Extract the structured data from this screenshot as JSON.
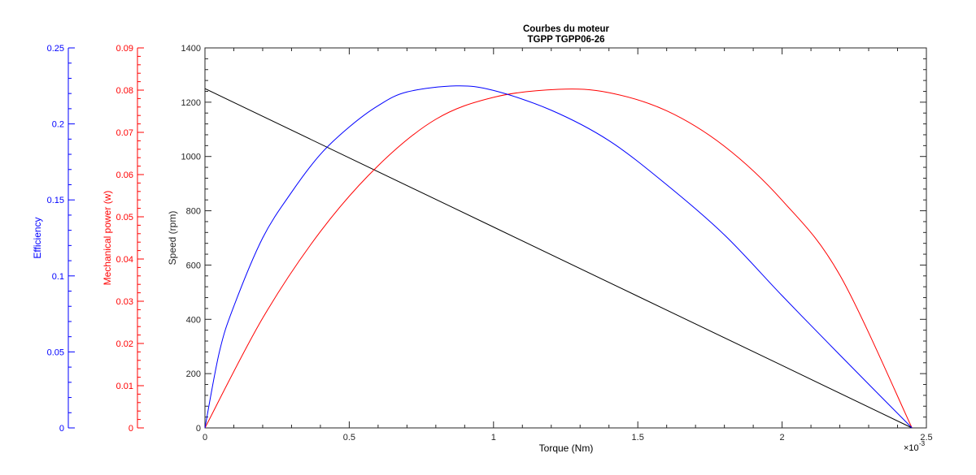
{
  "chart_data": {
    "type": "line",
    "title": "Courbes du moteur",
    "subtitle": "TGPP TGPP06-26",
    "xlabel": "Torque (Nm)",
    "x_exponent_base": "×10",
    "x_exponent_power": "-3",
    "x_ticks": [
      "0",
      "0.5",
      "1",
      "1.5",
      "2",
      "2.5"
    ],
    "xlim": [
      0,
      2.5
    ],
    "x_scale": 0.001,
    "axes": [
      {
        "key": "speed",
        "label": "Speed (rpm)",
        "color": "#262626",
        "ylim": [
          0,
          1400
        ],
        "ticks": [
          "0",
          "200",
          "400",
          "600",
          "800",
          "1000",
          "1200",
          "1400"
        ]
      },
      {
        "key": "power",
        "label": "Mechanical power (w)",
        "color": "#ff0000",
        "ylim": [
          0,
          0.09
        ],
        "ticks": [
          "0",
          "0.01",
          "0.02",
          "0.03",
          "0.04",
          "0.05",
          "0.06",
          "0.07",
          "0.08",
          "0.09"
        ]
      },
      {
        "key": "efficiency",
        "label": "Efficiency",
        "color": "#0000ff",
        "ylim": [
          0,
          0.25
        ],
        "ticks": [
          "0",
          "0.05",
          "0.1",
          "0.15",
          "0.2",
          "0.25"
        ]
      }
    ],
    "series": [
      {
        "axis": "speed",
        "color": "#000000",
        "x": [
          0,
          0.5,
          1.0,
          1.5,
          2.0,
          2.45
        ],
        "y": [
          1250,
          995,
          740,
          485,
          230,
          0
        ]
      },
      {
        "axis": "power",
        "color": "#ff0000",
        "x": [
          0,
          0.2,
          0.4,
          0.6,
          0.8,
          1.0,
          1.225,
          1.4,
          1.6,
          1.8,
          2.0,
          2.2,
          2.45
        ],
        "y": [
          0,
          0.026,
          0.0465,
          0.0621,
          0.0731,
          0.0783,
          0.0802,
          0.0794,
          0.0751,
          0.0667,
          0.0539,
          0.0362,
          0
        ]
      },
      {
        "axis": "efficiency",
        "color": "#0000ff",
        "x": [
          0,
          0.05,
          0.1,
          0.2,
          0.3,
          0.4,
          0.5,
          0.6,
          0.7,
          0.87,
          1.0,
          1.2,
          1.4,
          1.6,
          1.8,
          2.0,
          2.2,
          2.45
        ],
        "y": [
          0,
          0.05,
          0.08,
          0.125,
          0.155,
          0.18,
          0.198,
          0.212,
          0.221,
          0.225,
          0.222,
          0.209,
          0.189,
          0.16,
          0.127,
          0.087,
          0.048,
          0
        ]
      }
    ],
    "grid": false
  }
}
